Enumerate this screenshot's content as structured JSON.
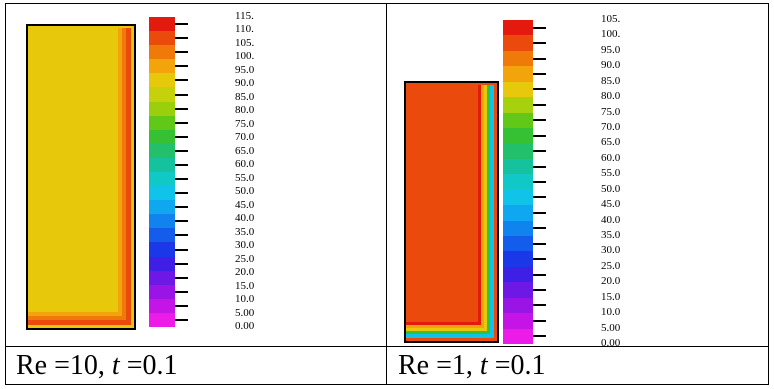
{
  "panels": [
    {
      "caption": {
        "prefix": "Re",
        "eq1": " =10, ",
        "var": "t",
        "eq2": " =0.1"
      },
      "colorbar": {
        "labels": [
          "115.",
          "110.",
          "105.",
          "100.",
          "95.0",
          "90.0",
          "85.0",
          "80.0",
          "75.0",
          "70.0",
          "65.0",
          "60.0",
          "55.0",
          "50.0",
          "45.0",
          "40.0",
          "35.0",
          "30.0",
          "25.0",
          "20.0",
          "15.0",
          "10.0",
          "5.00",
          "0.00"
        ],
        "colors": [
          "#e41a0e",
          "#ea4a0c",
          "#ef7a0a",
          "#f2a40a",
          "#e8c80a",
          "#c5d20b",
          "#9acf0c",
          "#62c817",
          "#36c034",
          "#22c06a",
          "#14c39d",
          "#10c8c6",
          "#0fc3e9",
          "#0fa7ef",
          "#1183ee",
          "#145cec",
          "#1a38e8",
          "#3d1fe6",
          "#6e18e5",
          "#9a14e5",
          "#c514e6",
          "#ec1ce8"
        ]
      },
      "domain": {
        "fill": "#e8c80a",
        "band_colors": [
          "#f2a40a",
          "#ef7a0a",
          "#ea4a0c"
        ]
      }
    },
    {
      "caption": {
        "prefix": "Re",
        "eq1": " =1, ",
        "var": "t",
        "eq2": " =0.1"
      },
      "colorbar": {
        "labels": [
          "105.",
          "100.",
          "95.0",
          "90.0",
          "85.0",
          "80.0",
          "75.0",
          "70.0",
          "65.0",
          "60.0",
          "55.0",
          "50.0",
          "45.0",
          "40.0",
          "35.0",
          "30.0",
          "25.0",
          "20.0",
          "15.0",
          "10.0",
          "5.00",
          "0.00"
        ],
        "colors": [
          "#e41a0e",
          "#ea4a0c",
          "#ef7a0a",
          "#f2a40a",
          "#e8c80a",
          "#a6d10c",
          "#62c817",
          "#36c034",
          "#22c06a",
          "#14c39d",
          "#10c8c6",
          "#0fc3e9",
          "#0fa7ef",
          "#1183ee",
          "#145cec",
          "#1a38e8",
          "#3d1fe6",
          "#6e18e5",
          "#9a14e5",
          "#c514e6",
          "#ec1ce8"
        ]
      },
      "domain": {
        "fill": "#ea4a0c",
        "band_colors": [
          "#e41a0e",
          "#f2a40a",
          "#e8c80a",
          "#36c034",
          "#0fc3e9"
        ]
      }
    }
  ]
}
